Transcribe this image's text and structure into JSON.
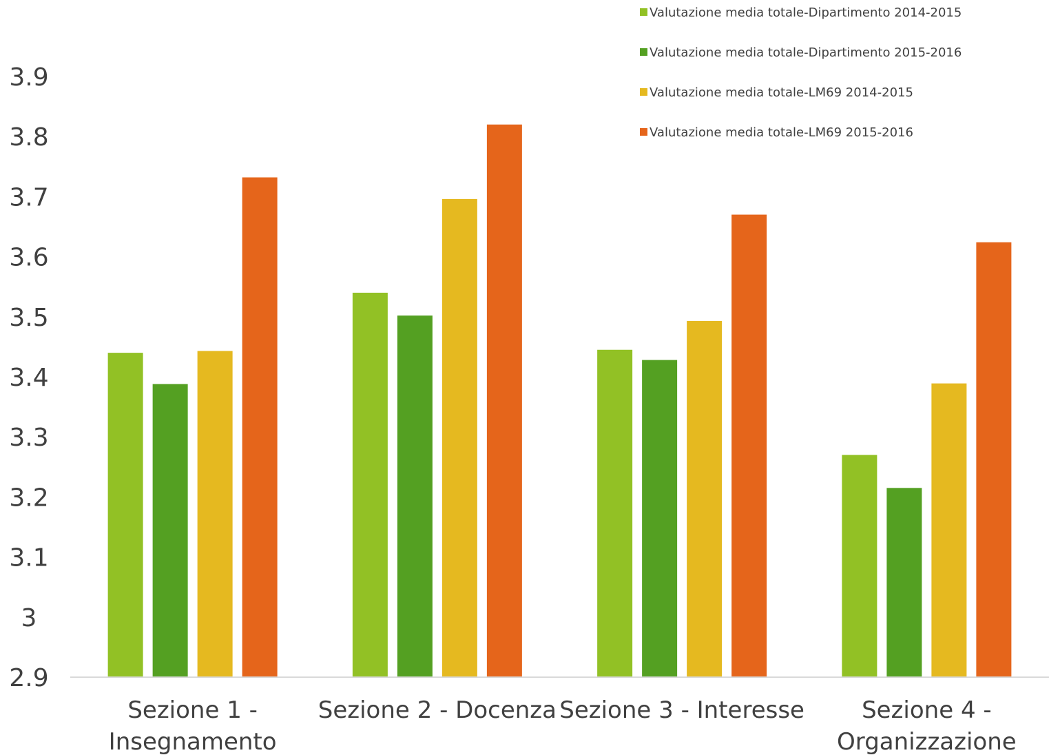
{
  "chart_data": {
    "type": "bar",
    "title": "",
    "xlabel": "",
    "ylabel": "",
    "ylim": [
      2.9,
      3.9
    ],
    "yticks": [
      "2.9",
      "3",
      "3.1",
      "3.2",
      "3.3",
      "3.4",
      "3.5",
      "3.6",
      "3.7",
      "3.8",
      "3.9"
    ],
    "categories": [
      [
        "Sezione 1 -",
        "Insegnamento"
      ],
      [
        "Sezione 2 - Docenza"
      ],
      [
        "Sezione 3 - Interesse"
      ],
      [
        "Sezione 4 -",
        "Organizzazione"
      ]
    ],
    "series": [
      {
        "name": "Valutazione media totale-Dipartimento 2014-2015",
        "color": "#92C125",
        "values": [
          3.44,
          3.54,
          3.445,
          3.27
        ]
      },
      {
        "name": "Valutazione media totale-Dipartimento 2015-2016",
        "color": "#54A022",
        "values": [
          3.388,
          3.502,
          3.428,
          3.215
        ]
      },
      {
        "name": "Valutazione media totale-LM69 2014-2015",
        "color": "#E5B920",
        "values": [
          3.443,
          3.696,
          3.493,
          3.389
        ]
      },
      {
        "name": "Valutazione media totale-LM69 2015-2016",
        "color": "#E5651B",
        "values": [
          3.732,
          3.82,
          3.67,
          3.624
        ]
      }
    ],
    "grid": false,
    "legend_position": "top-right"
  }
}
